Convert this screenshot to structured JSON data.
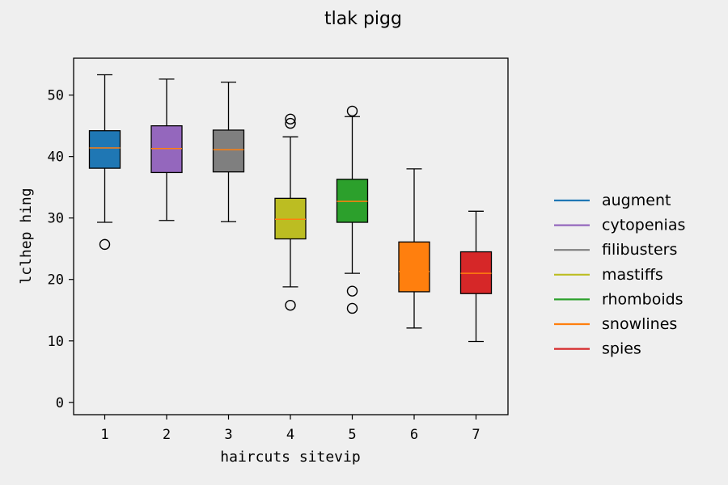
{
  "chart_data": {
    "type": "box",
    "title": "tlak pigg",
    "xlabel": "haircuts sitevip",
    "ylabel": "lclhep hing",
    "ylim": [
      -2,
      56
    ],
    "yticks": [
      0,
      10,
      20,
      30,
      40,
      50
    ],
    "categories": [
      "1",
      "2",
      "3",
      "4",
      "5",
      "6",
      "7"
    ],
    "legend_position": "right",
    "grid": false,
    "series": [
      {
        "name": "augment",
        "color": "#1f77b4",
        "whisker_low": 29.3,
        "q1": 38.1,
        "median": 41.4,
        "q3": 44.2,
        "whisker_high": 53.3,
        "outliers": [
          25.7
        ]
      },
      {
        "name": "cytopenias",
        "color": "#9467bd",
        "whisker_low": 29.6,
        "q1": 37.4,
        "median": 41.3,
        "q3": 45.0,
        "whisker_high": 52.6,
        "outliers": []
      },
      {
        "name": "filibusters",
        "color": "#7f7f7f",
        "whisker_low": 29.4,
        "q1": 37.5,
        "median": 41.1,
        "q3": 44.3,
        "whisker_high": 52.1,
        "outliers": []
      },
      {
        "name": "mastiffs",
        "color": "#bcbd22",
        "whisker_low": 18.8,
        "q1": 26.6,
        "median": 29.8,
        "q3": 33.2,
        "whisker_high": 43.2,
        "outliers": [
          15.8,
          45.4,
          46.1
        ]
      },
      {
        "name": "rhomboids",
        "color": "#2ca02c",
        "whisker_low": 21.0,
        "q1": 29.3,
        "median": 32.7,
        "q3": 36.3,
        "whisker_high": 46.5,
        "outliers": [
          15.3,
          18.1,
          47.4
        ]
      },
      {
        "name": "snowlines",
        "color": "#ff7f0e",
        "whisker_low": 12.1,
        "q1": 18.0,
        "median": 21.3,
        "q3": 26.1,
        "whisker_high": 38.0,
        "outliers": []
      },
      {
        "name": "spies",
        "color": "#d62728",
        "whisker_low": 9.9,
        "q1": 17.7,
        "median": 21.0,
        "q3": 24.5,
        "whisker_high": 31.1,
        "outliers": []
      }
    ]
  }
}
